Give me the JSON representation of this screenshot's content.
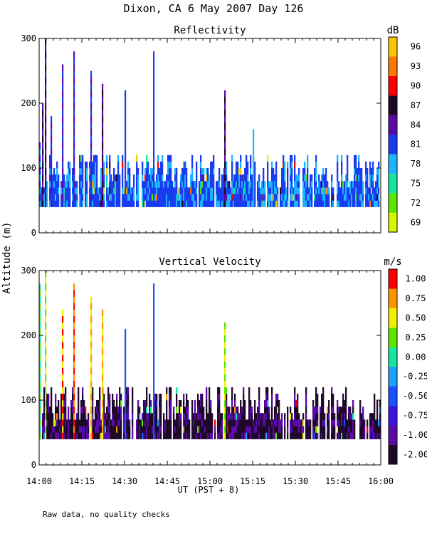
{
  "chart_data": {
    "title": "Dixon, CA  6 May 2007  Day 126",
    "ylabel": "Altitude (m)",
    "xlabel": "UT  (PST + 8)",
    "note": "Raw data, no quality checks",
    "x_ticks": [
      "14:00",
      "14:15",
      "14:30",
      "14:45",
      "15:00",
      "15:15",
      "15:30",
      "15:45",
      "16:00"
    ],
    "xlim_hours": [
      14.0,
      16.0
    ],
    "panels": [
      {
        "type": "heatmap",
        "title": "Reflectivity",
        "units": "dB",
        "ylim": [
          0,
          300
        ],
        "y_ticks": [
          "0",
          "100",
          "200",
          "300"
        ],
        "colorbar": {
          "labels": [
            "69",
            "72",
            "75",
            "78",
            "81",
            "84",
            "87",
            "90",
            "93",
            "96"
          ],
          "colors": [
            "#d7f500",
            "#5ce600",
            "#15e6a0",
            "#1ab4ff",
            "#1a3cf0",
            "#5a0aa6",
            "#1e0a28",
            "#ff0000",
            "#ff7800",
            "#ffc400"
          ]
        },
        "base_altitude_m": 40,
        "typical_top_m": 120,
        "dominant_values": [
          "81",
          "78"
        ],
        "plumes": [
          {
            "time": "14:00",
            "top_m": 140,
            "values": [
              "78",
              "81"
            ]
          },
          {
            "time": "14:01",
            "top_m": 200,
            "values": [
              "87",
              "84"
            ]
          },
          {
            "time": "14:02",
            "top_m": 300,
            "values": [
              "84",
              "87"
            ]
          },
          {
            "time": "14:04",
            "top_m": 180,
            "values": [
              "84",
              "81"
            ]
          },
          {
            "time": "14:08",
            "top_m": 260,
            "values": [
              "81",
              "84"
            ]
          },
          {
            "time": "14:12",
            "top_m": 280,
            "values": [
              "81",
              "84"
            ]
          },
          {
            "time": "14:18",
            "top_m": 250,
            "values": [
              "81",
              "84"
            ]
          },
          {
            "time": "14:22",
            "top_m": 230,
            "values": [
              "84",
              "87"
            ]
          },
          {
            "time": "14:30",
            "top_m": 220,
            "values": [
              "81"
            ]
          },
          {
            "time": "14:40",
            "top_m": 280,
            "values": [
              "81"
            ]
          },
          {
            "time": "15:05",
            "top_m": 220,
            "values": [
              "87",
              "84"
            ]
          },
          {
            "time": "15:15",
            "top_m": 160,
            "values": [
              "78"
            ]
          }
        ]
      },
      {
        "type": "heatmap",
        "title": "Vertical Velocity",
        "units": "m/s",
        "ylim": [
          0,
          300
        ],
        "y_ticks": [
          "0",
          "100",
          "200",
          "300"
        ],
        "colorbar": {
          "labels": [
            "-2.00",
            "-1.00",
            "-0.75",
            "-0.50",
            "-0.25",
            "0.00",
            "0.25",
            "0.50",
            "0.75",
            "1.00"
          ],
          "colors": [
            "#1e0a28",
            "#5a0aa6",
            "#3c14e0",
            "#1a50ff",
            "#1aa0ff",
            "#15e6a0",
            "#5ce600",
            "#f0f000",
            "#ff9600",
            "#ff0000"
          ]
        },
        "base_altitude_m": 40,
        "typical_top_m": 120,
        "dominant_values": [
          "-2.00",
          "-1.00"
        ],
        "plumes": [
          {
            "time": "14:00",
            "top_m": 280,
            "values": [
              "0.25",
              "0.00"
            ]
          },
          {
            "time": "14:02",
            "top_m": 300,
            "values": [
              "0.50",
              "0.25"
            ]
          },
          {
            "time": "14:08",
            "top_m": 240,
            "values": [
              "1.00",
              "0.50"
            ]
          },
          {
            "time": "14:12",
            "top_m": 280,
            "values": [
              "1.00",
              "0.75"
            ]
          },
          {
            "time": "14:18",
            "top_m": 260,
            "values": [
              "0.75",
              "0.50"
            ]
          },
          {
            "time": "14:22",
            "top_m": 240,
            "values": [
              "0.50",
              "0.75"
            ]
          },
          {
            "time": "14:30",
            "top_m": 210,
            "values": [
              "-0.50"
            ]
          },
          {
            "time": "14:40",
            "top_m": 280,
            "values": [
              "-0.50"
            ]
          },
          {
            "time": "15:05",
            "top_m": 220,
            "values": [
              "0.50",
              "0.25"
            ]
          }
        ]
      }
    ]
  }
}
